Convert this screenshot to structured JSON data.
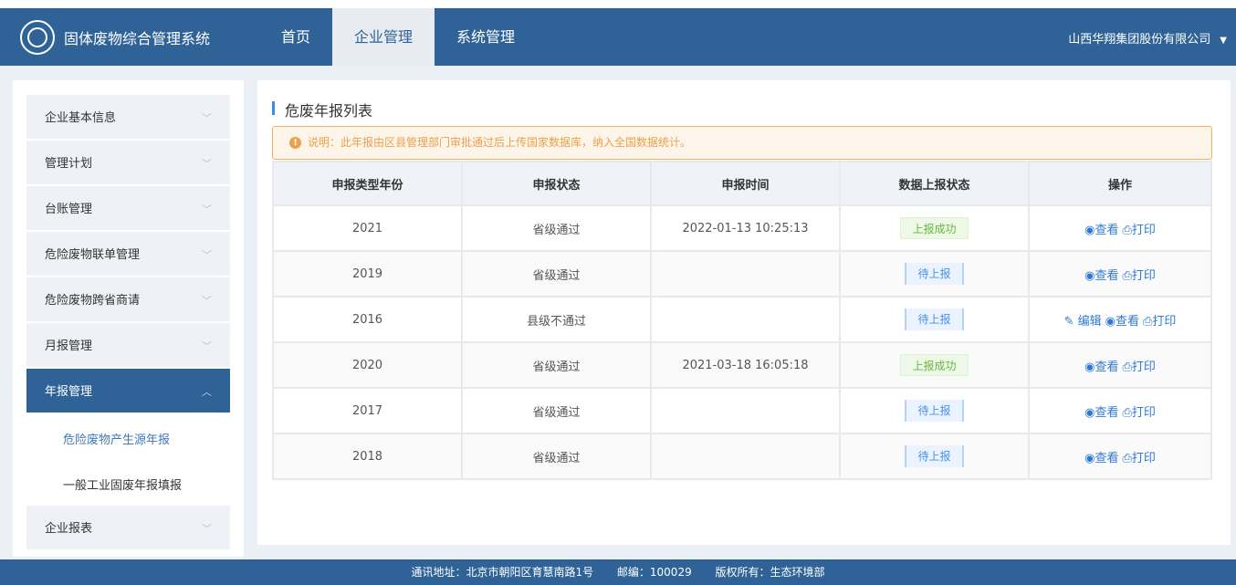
{
  "header": {
    "title": "固体废物综合管理系统",
    "nav": [
      "首页",
      "企业管理",
      "系统管理"
    ],
    "active_nav": 1,
    "user": "山西华翔集团股份有限公司"
  },
  "sidebar": {
    "items": [
      "企业基本信息",
      "管理计划",
      "台账管理",
      "危险废物联单管理",
      "危险废物跨省商请",
      "月报管理",
      "年报管理"
    ],
    "subitems": [
      "危险废物产生源年报",
      "一般工业固废年报填报"
    ],
    "last_item": "企业报表"
  },
  "main": {
    "title": "危废年报列表",
    "notice": "说明：此年报由区县管理部门审批通过后上传国家数据库，纳入全国数据统计。",
    "columns": [
      "申报类型年份",
      "申报状态",
      "申报时间",
      "数据上报状态",
      "操作"
    ],
    "rows": [
      {
        "year": "2021",
        "status": "省级通过",
        "time": "2022-01-13 10:25:13",
        "report": "上报成功",
        "ok": true,
        "edit": false
      },
      {
        "year": "2019",
        "status": "省级通过",
        "time": "",
        "report": "待上报",
        "ok": false,
        "edit": false
      },
      {
        "year": "2016",
        "status": "县级不通过",
        "time": "",
        "report": "待上报",
        "ok": false,
        "edit": true
      },
      {
        "year": "2020",
        "status": "省级通过",
        "time": "2021-03-18 16:05:18",
        "report": "上报成功",
        "ok": true,
        "edit": false
      },
      {
        "year": "2017",
        "status": "省级通过",
        "time": "",
        "report": "待上报",
        "ok": false,
        "edit": false
      },
      {
        "year": "2018",
        "status": "省级通过",
        "time": "",
        "report": "待上报",
        "ok": false,
        "edit": false
      }
    ],
    "actions": {
      "edit": "编辑",
      "view": "查看",
      "print": "打印"
    }
  },
  "footer": {
    "address": "通讯地址：北京市朝阳区育慧南路1号",
    "zip": "邮编：100029",
    "copyright": "版权所有：生态环境部"
  }
}
